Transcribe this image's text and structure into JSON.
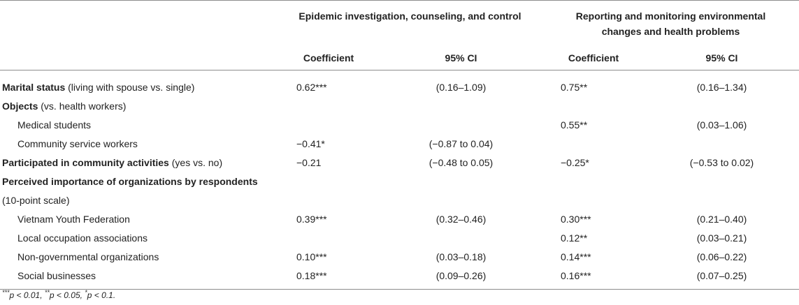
{
  "header": {
    "group1": "Epidemic investigation, counseling, and control",
    "group2_line1": "Reporting and monitoring environmental",
    "group2_line2": "changes and health problems",
    "coef": "Coefficient",
    "ci": "95% CI"
  },
  "rows": {
    "marital": {
      "bold": "Marital status",
      "rest": " (living with spouse vs. single)",
      "c1": "0.62***",
      "ci1": "(0.16–1.09)",
      "c2": "0.75**",
      "ci2": "(0.16–1.34)"
    },
    "objects": {
      "bold": "Objects",
      "rest": " (vs. health workers)"
    },
    "med": {
      "label": "Medical students",
      "c2": "0.55**",
      "ci2": "(0.03–1.06)"
    },
    "csw": {
      "label": "Community service workers",
      "c1": "−0.41*",
      "ci1": "(−0.87 to 0.04)"
    },
    "part": {
      "bold": "Participated in community activities",
      "rest": " (yes vs. no)",
      "c1": "−0.21",
      "ci1": "(−0.48 to 0.05)",
      "c2": "−0.25*",
      "ci2": "(−0.53 to 0.02)"
    },
    "perc": {
      "bold": "Perceived importance of organizations by respondents"
    },
    "scale": {
      "label": "(10-point scale)"
    },
    "vyf": {
      "label": "Vietnam Youth Federation",
      "c1": "0.39***",
      "ci1": "(0.32–0.46)",
      "c2": "0.30***",
      "ci2": "(0.21–0.40)"
    },
    "loa": {
      "label": "Local occupation associations",
      "c2": "0.12**",
      "ci2": "(0.03–0.21)"
    },
    "ngo": {
      "label": "Non-governmental organizations",
      "c1": "0.10***",
      "ci1": "(0.03–0.18)",
      "c2": "0.14***",
      "ci2": "(0.06–0.22)"
    },
    "sb": {
      "label": "Social businesses",
      "c1": "0.18***",
      "ci1": "(0.09–0.26)",
      "c2": "0.16***",
      "ci2": "(0.07–0.25)"
    }
  },
  "footnote": {
    "s1": "***",
    "t1": "p < 0.01, ",
    "s2": "**",
    "t2": "p < 0.05, ",
    "s3": "*",
    "t3": "p < 0.1."
  }
}
